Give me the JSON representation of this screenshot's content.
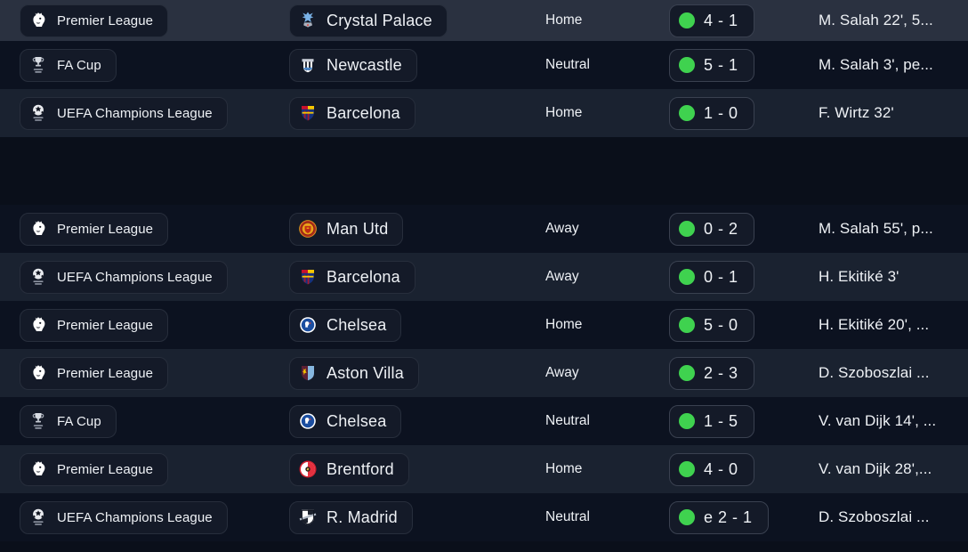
{
  "colors": {
    "row_highlight": "#2a3140",
    "row_light": "#1a2230",
    "row_dark": "#0c1220",
    "section_gap": "#0a0f1a",
    "chip_bg": "#141a28",
    "chip_border": "#272e3c",
    "score_chip_border": "#3a4150",
    "win_green": "#3fd24f",
    "text": "#eef1f5"
  },
  "table": {
    "section_break_after_row": 3,
    "columns": [
      "league",
      "opponent",
      "venue",
      "score",
      "scorers"
    ]
  },
  "rows": [
    {
      "league": "Premier League",
      "league_icon": "premier-league-icon",
      "team": "Crystal Palace",
      "team_icon": "crystal-palace-icon",
      "venue": "Home",
      "result": "win",
      "score": "4 - 1",
      "scorers": "M. Salah 22', 5...",
      "highlighted": true
    },
    {
      "league": "FA Cup",
      "league_icon": "fa-cup-icon",
      "team": "Newcastle",
      "team_icon": "newcastle-icon",
      "venue": "Neutral",
      "result": "win",
      "score": "5 - 1",
      "scorers": "M. Salah 3', pe...",
      "highlighted": false
    },
    {
      "league": "UEFA Champions League",
      "league_icon": "uefa-champions-league-icon",
      "team": "Barcelona",
      "team_icon": "barcelona-icon",
      "venue": "Home",
      "result": "win",
      "score": "1 - 0",
      "scorers": "F. Wirtz 32'",
      "highlighted": false
    },
    {
      "league": "Premier League",
      "league_icon": "premier-league-icon",
      "team": "Man Utd",
      "team_icon": "man-utd-icon",
      "venue": "Away",
      "result": "win",
      "score": "0 - 2",
      "scorers": "M. Salah 55', p...",
      "highlighted": false
    },
    {
      "league": "UEFA Champions League",
      "league_icon": "uefa-champions-league-icon",
      "team": "Barcelona",
      "team_icon": "barcelona-icon",
      "venue": "Away",
      "result": "win",
      "score": "0 - 1",
      "scorers": "H. Ekitiké 3'",
      "highlighted": false
    },
    {
      "league": "Premier League",
      "league_icon": "premier-league-icon",
      "team": "Chelsea",
      "team_icon": "chelsea-icon",
      "venue": "Home",
      "result": "win",
      "score": "5 - 0",
      "scorers": "H. Ekitiké 20', ...",
      "highlighted": false
    },
    {
      "league": "Premier League",
      "league_icon": "premier-league-icon",
      "team": "Aston Villa",
      "team_icon": "aston-villa-icon",
      "venue": "Away",
      "result": "win",
      "score": "2 - 3",
      "scorers": "D. Szoboszlai ...",
      "highlighted": false
    },
    {
      "league": "FA Cup",
      "league_icon": "fa-cup-icon",
      "team": "Chelsea",
      "team_icon": "chelsea-icon",
      "venue": "Neutral",
      "result": "win",
      "score": "1 - 5",
      "scorers": "V. van Dijk 14', ...",
      "highlighted": false
    },
    {
      "league": "Premier League",
      "league_icon": "premier-league-icon",
      "team": "Brentford",
      "team_icon": "brentford-icon",
      "venue": "Home",
      "result": "win",
      "score": "4 - 0",
      "scorers": "V. van Dijk 28',...",
      "highlighted": false
    },
    {
      "league": "UEFA Champions League",
      "league_icon": "uefa-champions-league-icon",
      "team": "R. Madrid",
      "team_icon": "real-madrid-icon",
      "venue": "Neutral",
      "result": "win",
      "score": "e 2 - 1",
      "scorers": "D. Szoboszlai ...",
      "highlighted": false
    }
  ]
}
